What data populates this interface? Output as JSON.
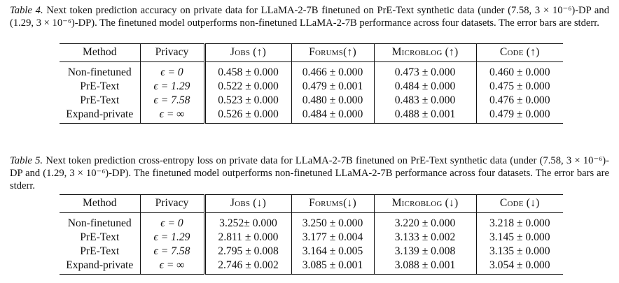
{
  "table4": {
    "caption_label": "Table 4.",
    "caption_text": "Next token prediction accuracy on private data for LLaMA-2-7B finetuned on PrE-Text synthetic data (under (7.58, 3 × 10⁻⁶)-DP and (1.29, 3 × 10⁻⁶)-DP). The finetuned model outperforms non-finetuned LLaMA-2-7B performance across four datasets. The error bars are stderr.",
    "headers": [
      "Method",
      "Privacy",
      "Jobs (↑)",
      "Forums(↑)",
      "Microblog (↑)",
      "Code (↑)"
    ],
    "rows": [
      [
        "Non-finetuned",
        "ϵ = 0",
        "0.458 ± 0.000",
        "0.466 ± 0.000",
        "0.473 ± 0.000",
        "0.460 ± 0.000"
      ],
      [
        "PrE-Text",
        "ϵ = 1.29",
        "0.522 ± 0.000",
        "0.479 ± 0.001",
        "0.484 ± 0.000",
        "0.475 ± 0.000"
      ],
      [
        "PrE-Text",
        "ϵ = 7.58",
        "0.523 ± 0.000",
        "0.480 ± 0.000",
        "0.483 ± 0.000",
        "0.476 ± 0.000"
      ],
      [
        "Expand-private",
        "ϵ = ∞",
        "0.526 ± 0.000",
        "0.484 ± 0.000",
        "0.488 ± 0.001",
        "0.479 ± 0.000"
      ]
    ]
  },
  "table5": {
    "caption_label": "Table 5.",
    "caption_text": "Next token prediction cross-entropy loss on private data for LLaMA-2-7B finetuned on PrE-Text synthetic data (under (7.58, 3 × 10⁻⁶)-DP and (1.29, 3 × 10⁻⁶)-DP). The finetuned model outperforms non-finetuned LLaMA-2-7B performance across four datasets. The error bars are stderr.",
    "headers": [
      "Method",
      "Privacy",
      "Jobs (↓)",
      "Forums(↓)",
      "Microblog (↓)",
      "Code (↓)"
    ],
    "rows": [
      [
        "Non-finetuned",
        "ϵ = 0",
        "3.252± 0.000",
        "3.250 ± 0.000",
        "3.220 ± 0.000",
        "3.218 ± 0.000"
      ],
      [
        "PrE-Text",
        "ϵ = 1.29",
        "2.811 ± 0.000",
        "3.177 ± 0.004",
        "3.133 ± 0.002",
        "3.145 ± 0.000"
      ],
      [
        "PrE-Text",
        "ϵ = 7.58",
        "2.795 ± 0.008",
        "3.164 ± 0.005",
        "3.139 ± 0.008",
        "3.135 ± 0.000"
      ],
      [
        "Expand-private",
        "ϵ = ∞",
        "2.746 ± 0.002",
        "3.085 ± 0.001",
        "3.088 ± 0.001",
        "3.054 ± 0.000"
      ]
    ]
  }
}
